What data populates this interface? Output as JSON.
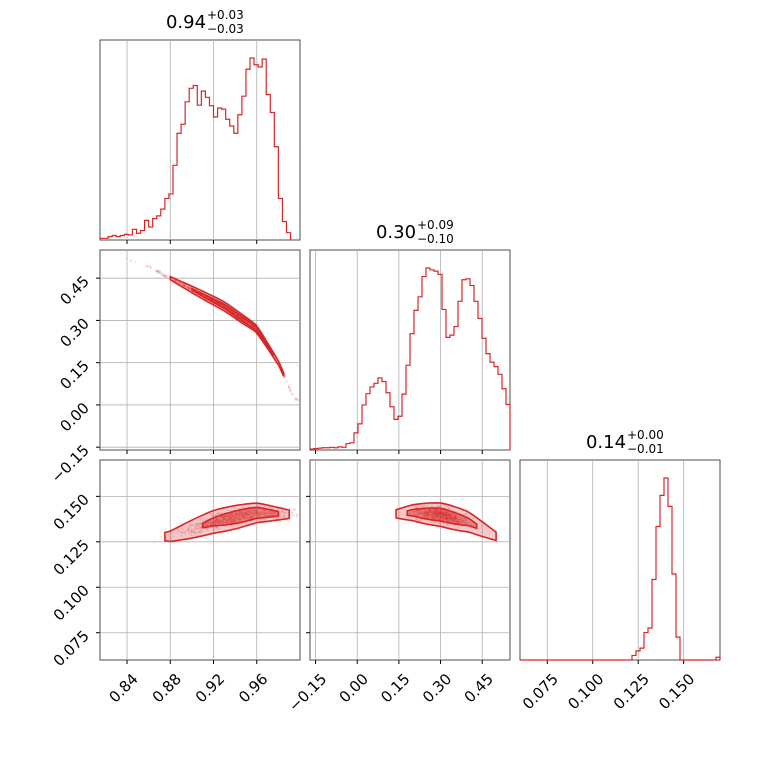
{
  "chart_data": {
    "type": "corner",
    "color": "#d62728",
    "parameters": [
      {
        "title_value": "0.94",
        "title_plus": "+0.03",
        "title_minus": "−0.03",
        "range": [
          0.815,
          1.0
        ],
        "ticks": [
          {
            "value": 0.84,
            "label": "0.84"
          },
          {
            "value": 0.88,
            "label": "0.88"
          },
          {
            "value": 0.92,
            "label": "0.92"
          },
          {
            "value": 0.96,
            "label": "0.96"
          }
        ],
        "histogram": {
          "bin_start": 0.815,
          "bin_width": 0.00375,
          "counts": [
            0.3,
            0.3,
            0.6,
            0.8,
            0.6,
            0.8,
            1,
            0.9,
            1.9,
            1.2,
            1.7,
            3.5,
            2.3,
            3.8,
            4.3,
            5.5,
            7.4,
            8.2,
            13.3,
            19,
            20.6,
            24.6,
            27,
            27.5,
            24,
            26.5,
            25.4,
            23.9,
            21.9,
            23.5,
            23.3,
            21.5,
            20.3,
            19,
            22.3,
            25.6,
            30.4,
            32.4,
            31.2,
            30.8,
            32.2,
            25.9,
            22.7,
            16.6,
            7.4,
            3.3,
            1.3
          ]
        }
      },
      {
        "title_value": "0.30",
        "title_plus": "+0.09",
        "title_minus": "−0.10",
        "range": [
          -0.17,
          0.55
        ],
        "ticks": [
          {
            "value": -0.15,
            "label": "−0.15"
          },
          {
            "value": 0.0,
            "label": "0.00"
          },
          {
            "value": 0.15,
            "label": "0.15"
          },
          {
            "value": 0.3,
            "label": "0.30"
          },
          {
            "value": 0.45,
            "label": "0.45"
          }
        ],
        "histogram": {
          "bin_start": -0.17,
          "bin_width": 0.0144,
          "counts": [
            0.2,
            0.3,
            0.4,
            0.5,
            0.5,
            0.6,
            0.5,
            0.7,
            0.6,
            1.4,
            1.6,
            3.8,
            5.8,
            10,
            12.5,
            14,
            14.8,
            16,
            15.2,
            12.7,
            9.6,
            6.8,
            7.5,
            12.4,
            18.8,
            25.8,
            31,
            34,
            38.5,
            40.4,
            40,
            39.7,
            39,
            31.2,
            25,
            25.5,
            27.4,
            33,
            37.8,
            38,
            36.5,
            33,
            29.2,
            24.8,
            21.4,
            19.5,
            18.5,
            16.8,
            13.6,
            10.1
          ]
        }
      },
      {
        "title_value": "0.14",
        "title_plus": "+0.00",
        "title_minus": "−0.01",
        "range": [
          0.06,
          0.17
        ],
        "ticks": [
          {
            "value": 0.075,
            "label": "0.075"
          },
          {
            "value": 0.1,
            "label": "0.100"
          },
          {
            "value": 0.125,
            "label": "0.125"
          },
          {
            "value": 0.15,
            "label": "0.150"
          }
        ],
        "histogram": {
          "bin_start": 0.06,
          "bin_width": 0.0022,
          "counts": [
            0,
            0,
            0,
            0,
            0,
            0,
            0,
            0,
            0,
            0,
            0,
            0,
            0,
            0,
            0,
            0,
            0,
            0,
            0,
            0,
            0,
            0,
            0,
            0,
            0,
            0,
            0,
            0,
            0.5,
            1,
            1.3,
            3,
            3.5,
            8.8,
            14.6,
            18,
            19.9,
            16.8,
            9.4,
            2.5,
            0,
            0,
            0,
            0,
            0,
            0,
            0,
            0,
            0,
            0.3
          ]
        }
      }
    ],
    "y_ticks": {
      "row1": [
        {
          "value": -0.15,
          "label": "−0.15"
        },
        {
          "value": 0.0,
          "label": "0.00"
        },
        {
          "value": 0.15,
          "label": "0.15"
        },
        {
          "value": 0.3,
          "label": "0.30"
        },
        {
          "value": 0.45,
          "label": "0.45"
        }
      ],
      "row2": [
        {
          "value": 0.075,
          "label": "0.075"
        },
        {
          "value": 0.1,
          "label": "0.100"
        },
        {
          "value": 0.125,
          "label": "0.125"
        },
        {
          "value": 0.15,
          "label": "0.150"
        }
      ]
    },
    "scatter_trends": {
      "p1_vs_p0": [
        [
          0.821,
          0.54
        ],
        [
          0.86,
          0.49
        ],
        [
          0.9,
          0.41
        ],
        [
          0.93,
          0.35
        ],
        [
          0.96,
          0.27
        ],
        [
          0.98,
          0.15
        ],
        [
          0.995,
          0.02
        ]
      ],
      "p2_vs_p0": [
        [
          0.82,
          0.126
        ],
        [
          0.88,
          0.128
        ],
        [
          0.92,
          0.136
        ],
        [
          0.96,
          0.141
        ],
        [
          0.995,
          0.14
        ]
      ],
      "p2_vs_p1": [
        [
          0.1,
          0.14
        ],
        [
          0.2,
          0.141
        ],
        [
          0.3,
          0.14
        ],
        [
          0.4,
          0.136
        ],
        [
          0.5,
          0.128
        ]
      ]
    },
    "grid": true
  }
}
